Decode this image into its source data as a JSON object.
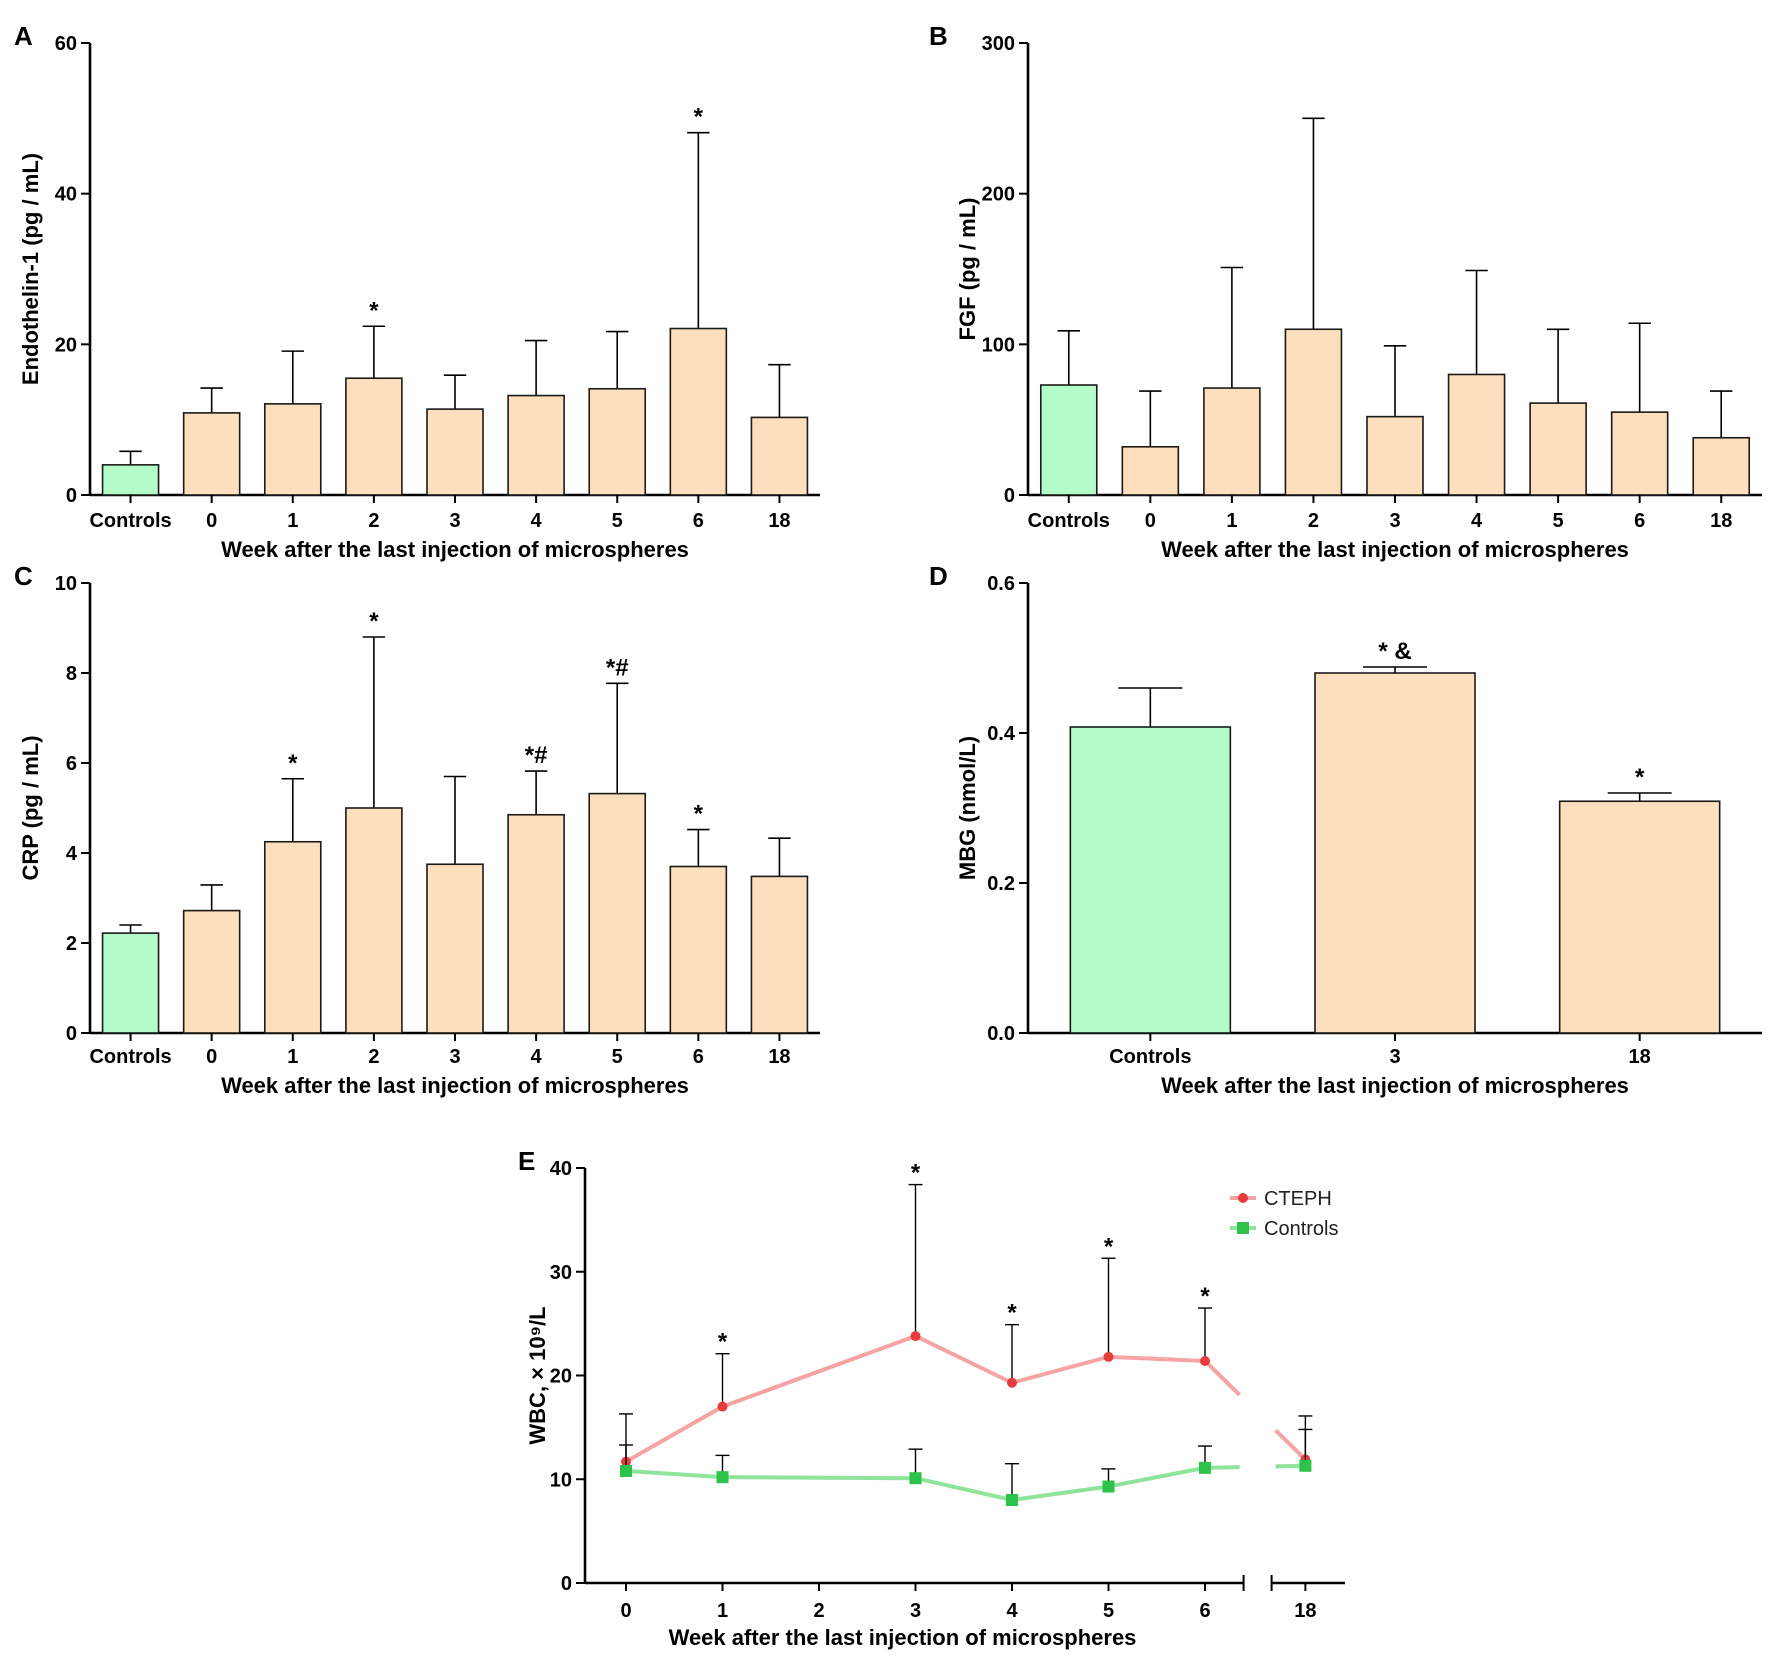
{
  "figure": {
    "colors": {
      "control_bar": "#b3fcca",
      "treatment_bar": "#fddfbd",
      "cteph_line": "#f5a3a3",
      "cteph_marker": "#e83c3c",
      "controls_line": "#8fe39a",
      "controls_marker": "#2dc24a"
    }
  },
  "chart_data": [
    {
      "id": "A",
      "panel_label": "A",
      "type": "bar",
      "ylabel": "Endothelin-1 (pg / mL)",
      "xlabel": "Week after the last injection of microspheres",
      "ylim": [
        0,
        60
      ],
      "yticks": [
        0,
        20,
        40,
        60
      ],
      "categories": [
        "Controls",
        "0",
        "1",
        "2",
        "3",
        "4",
        "5",
        "6",
        "18"
      ],
      "values": [
        4.0,
        10.9,
        12.1,
        15.5,
        11.4,
        13.2,
        14.1,
        22.1,
        10.3
      ],
      "errors": [
        1.8,
        3.3,
        7.0,
        6.9,
        4.5,
        7.3,
        7.6,
        26.0,
        7.0
      ],
      "groups": [
        "control",
        "treatment",
        "treatment",
        "treatment",
        "treatment",
        "treatment",
        "treatment",
        "treatment",
        "treatment"
      ],
      "annotations": [
        "",
        "",
        "",
        "*",
        "",
        "",
        "",
        "*",
        ""
      ]
    },
    {
      "id": "B",
      "panel_label": "B",
      "type": "bar",
      "ylabel": "FGF (pg / mL)",
      "xlabel": "Week after the last injection of microspheres",
      "ylim": [
        0,
        300
      ],
      "yticks": [
        0,
        100,
        200,
        300
      ],
      "categories": [
        "Controls",
        "0",
        "1",
        "2",
        "3",
        "4",
        "5",
        "6",
        "18"
      ],
      "values": [
        73,
        32,
        71,
        110,
        52,
        80,
        61,
        55,
        38
      ],
      "errors": [
        36,
        37,
        80,
        140,
        47,
        69,
        49,
        59,
        31
      ],
      "groups": [
        "control",
        "treatment",
        "treatment",
        "treatment",
        "treatment",
        "treatment",
        "treatment",
        "treatment",
        "treatment"
      ],
      "annotations": [
        "",
        "",
        "",
        "",
        "",
        "",
        "",
        "",
        ""
      ]
    },
    {
      "id": "C",
      "panel_label": "C",
      "type": "bar",
      "ylabel": "CRP (pg / mL)",
      "xlabel": "Week after the last injection of microspheres",
      "ylim": [
        0,
        10
      ],
      "yticks": [
        0,
        2,
        4,
        6,
        8,
        10
      ],
      "categories": [
        "Controls",
        "0",
        "1",
        "2",
        "3",
        "4",
        "5",
        "6",
        "18"
      ],
      "values": [
        2.22,
        2.72,
        4.25,
        5.0,
        3.75,
        4.85,
        5.32,
        3.7,
        3.48
      ],
      "errors": [
        0.18,
        0.57,
        1.4,
        3.8,
        1.95,
        0.97,
        2.45,
        0.82,
        0.85
      ],
      "groups": [
        "control",
        "treatment",
        "treatment",
        "treatment",
        "treatment",
        "treatment",
        "treatment",
        "treatment",
        "treatment"
      ],
      "annotations": [
        "",
        "",
        "*",
        "*",
        "",
        "*#",
        "*#",
        "*",
        ""
      ]
    },
    {
      "id": "D",
      "panel_label": "D",
      "type": "bar",
      "ylabel": "MBG (nmol/L)",
      "xlabel": "Week after the last injection of microspheres",
      "ylim": [
        0,
        0.6
      ],
      "yticks": [
        "0.0",
        "0.2",
        "0.4",
        "0.6"
      ],
      "categories": [
        "Controls",
        "3",
        "18"
      ],
      "values": [
        0.408,
        0.48,
        0.309
      ],
      "errors": [
        0.052,
        0.008,
        0.011
      ],
      "groups": [
        "control",
        "treatment",
        "treatment"
      ],
      "annotations": [
        "",
        "*   &",
        "*"
      ]
    },
    {
      "id": "E",
      "panel_label": "E",
      "type": "line",
      "ylabel": "WBC, × 10⁹/L",
      "xlabel": "Week after the last injection of microspheres",
      "ylim": [
        0,
        40
      ],
      "yticks": [
        0,
        10,
        20,
        30,
        40
      ],
      "x_ticks": [
        "0",
        "1",
        "2",
        "3",
        "4",
        "5",
        "6",
        "18"
      ],
      "x": [
        0,
        1,
        3,
        4,
        5,
        6,
        18
      ],
      "series": [
        {
          "name": "CTEPH",
          "values": [
            11.7,
            17.0,
            23.8,
            19.3,
            21.8,
            21.4,
            11.9
          ],
          "errors": [
            4.6,
            5.1,
            14.6,
            5.6,
            9.5,
            5.1,
            4.2
          ],
          "annotations": [
            "",
            "*",
            "*",
            "*",
            "*",
            "*",
            ""
          ]
        },
        {
          "name": "Controls",
          "values": [
            10.8,
            10.2,
            10.1,
            8.0,
            9.3,
            11.1,
            11.3
          ],
          "errors": [
            2.5,
            2.1,
            2.8,
            3.5,
            1.7,
            2.1,
            3.5
          ],
          "annotations": [
            "",
            "",
            "",
            "",
            "",
            "",
            ""
          ]
        }
      ],
      "legend_position": "top-right",
      "axis_break": "between 6 and 18"
    }
  ]
}
